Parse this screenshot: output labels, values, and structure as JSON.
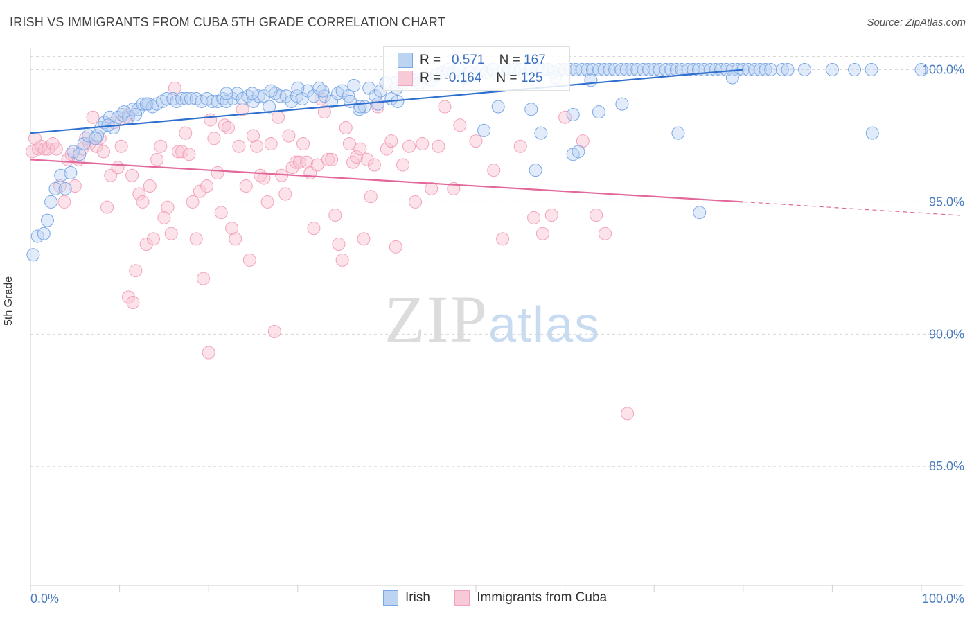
{
  "title": "IRISH VS IMMIGRANTS FROM CUBA 5TH GRADE CORRELATION CHART",
  "source": "Source: ZipAtlas.com",
  "watermark": {
    "zip": "ZIP",
    "atlas": "atlas"
  },
  "legend_top": {
    "series1": {
      "r_label": "R =",
      "r_value": "0.571",
      "n_label": "N =",
      "n_value": "167"
    },
    "series2": {
      "r_label": "R =",
      "r_value": "-0.164",
      "n_label": "N =",
      "n_value": "125"
    }
  },
  "colors": {
    "irish": "#7aa7e6",
    "irish_line": "#2f6fcd",
    "cuba": "#f2a2bb",
    "cuba_line": "#e2679a",
    "axis_text": "#4a7cc0"
  },
  "chart_data": {
    "type": "scatter",
    "title": "IRISH VS IMMIGRANTS FROM CUBA 5TH GRADE CORRELATION CHART",
    "xlabel": "",
    "ylabel": "5th Grade",
    "xlim": [
      0,
      100
    ],
    "ylim": [
      80.5,
      100.8
    ],
    "x_tick_labels": [
      "0.0%",
      "100.0%"
    ],
    "y_ticks": [
      85,
      90,
      95,
      100
    ],
    "y_tick_labels": [
      "85.0%",
      "90.0%",
      "95.0%",
      "100.0%"
    ],
    "grid": true,
    "legend_placement": "bottom",
    "series": [
      {
        "name": "Irish",
        "trend": {
          "x0": 0,
          "y0": 97.6,
          "x1": 80,
          "y1": 100.0
        },
        "points": [
          [
            0.3,
            93.0
          ],
          [
            0.8,
            93.7
          ],
          [
            1.5,
            93.8
          ],
          [
            1.9,
            94.3
          ],
          [
            2.3,
            95.0
          ],
          [
            2.8,
            95.5
          ],
          [
            3.4,
            96.0
          ],
          [
            3.9,
            95.5
          ],
          [
            4.5,
            96.1
          ],
          [
            4.8,
            96.9
          ],
          [
            5.5,
            96.8
          ],
          [
            6.0,
            97.2
          ],
          [
            6.5,
            97.5
          ],
          [
            7.5,
            97.5
          ],
          [
            7.9,
            97.8
          ],
          [
            8.3,
            98.0
          ],
          [
            8.9,
            98.2
          ],
          [
            9.3,
            97.8
          ],
          [
            9.8,
            98.2
          ],
          [
            10.3,
            98.3
          ],
          [
            11.0,
            98.2
          ],
          [
            11.5,
            98.5
          ],
          [
            12.1,
            98.5
          ],
          [
            12.6,
            98.7
          ],
          [
            13.2,
            98.7
          ],
          [
            13.7,
            98.6
          ],
          [
            14.2,
            98.7
          ],
          [
            14.8,
            98.8
          ],
          [
            15.3,
            98.9
          ],
          [
            16.0,
            98.9
          ],
          [
            16.4,
            98.8
          ],
          [
            17.0,
            98.9
          ],
          [
            17.5,
            98.9
          ],
          [
            18.0,
            98.9
          ],
          [
            18.6,
            98.9
          ],
          [
            19.2,
            98.8
          ],
          [
            19.8,
            98.9
          ],
          [
            20.4,
            98.8
          ],
          [
            21.0,
            98.8
          ],
          [
            21.6,
            98.9
          ],
          [
            22.0,
            98.8
          ],
          [
            22.7,
            98.9
          ],
          [
            23.2,
            99.1
          ],
          [
            23.8,
            98.9
          ],
          [
            24.4,
            99.0
          ],
          [
            25.0,
            98.8
          ],
          [
            25.6,
            99.0
          ],
          [
            26.2,
            99.0
          ],
          [
            26.8,
            98.6
          ],
          [
            27.5,
            99.1
          ],
          [
            28.0,
            99.0
          ],
          [
            28.7,
            99.0
          ],
          [
            29.3,
            98.8
          ],
          [
            29.9,
            99.0
          ],
          [
            30.5,
            98.9
          ],
          [
            31.1,
            99.2
          ],
          [
            31.8,
            99.0
          ],
          [
            32.4,
            99.3
          ],
          [
            33.0,
            99.0
          ],
          [
            33.8,
            98.8
          ],
          [
            34.5,
            99.1
          ],
          [
            35.0,
            99.2
          ],
          [
            35.7,
            99.0
          ],
          [
            36.3,
            99.4
          ],
          [
            36.9,
            98.5
          ],
          [
            37.5,
            98.6
          ],
          [
            38.0,
            99.3
          ],
          [
            38.7,
            99.0
          ],
          [
            39.3,
            99.2
          ],
          [
            39.9,
            99.5
          ],
          [
            40.5,
            98.9
          ],
          [
            41.1,
            99.3
          ],
          [
            41.8,
            99.5
          ],
          [
            42.4,
            99.7
          ],
          [
            43.0,
            99.6
          ],
          [
            43.7,
            99.5
          ],
          [
            44.3,
            99.7
          ],
          [
            45.0,
            99.6
          ],
          [
            45.6,
            99.8
          ],
          [
            46.2,
            99.9
          ],
          [
            46.9,
            100.0
          ],
          [
            47.5,
            99.9
          ],
          [
            48.1,
            100.0
          ],
          [
            48.7,
            99.7
          ],
          [
            49.3,
            99.9
          ],
          [
            50.0,
            99.8
          ],
          [
            50.6,
            100.0
          ],
          [
            51.2,
            99.9
          ],
          [
            51.9,
            100.0
          ],
          [
            52.5,
            99.8
          ],
          [
            53.1,
            100.0
          ],
          [
            53.7,
            100.0
          ],
          [
            54.3,
            100.0
          ],
          [
            55.0,
            100.0
          ],
          [
            55.6,
            99.8
          ],
          [
            56.2,
            100.0
          ],
          [
            56.9,
            100.0
          ],
          [
            57.5,
            100.0
          ],
          [
            58.1,
            100.0
          ],
          [
            58.7,
            99.9
          ],
          [
            59.4,
            100.0
          ],
          [
            60.0,
            100.0
          ],
          [
            60.6,
            100.0
          ],
          [
            61.2,
            100.0
          ],
          [
            61.9,
            100.0
          ],
          [
            62.5,
            100.0
          ],
          [
            63.1,
            100.0
          ],
          [
            63.8,
            100.0
          ],
          [
            64.4,
            100.0
          ],
          [
            65.0,
            100.0
          ],
          [
            65.6,
            100.0
          ],
          [
            66.3,
            100.0
          ],
          [
            66.9,
            100.0
          ],
          [
            67.5,
            100.0
          ],
          [
            68.1,
            100.0
          ],
          [
            68.8,
            100.0
          ],
          [
            69.4,
            100.0
          ],
          [
            70.0,
            100.0
          ],
          [
            70.6,
            100.0
          ],
          [
            71.3,
            100.0
          ],
          [
            71.9,
            100.0
          ],
          [
            72.5,
            100.0
          ],
          [
            73.1,
            100.0
          ],
          [
            73.8,
            100.0
          ],
          [
            74.4,
            100.0
          ],
          [
            75.0,
            100.0
          ],
          [
            75.6,
            100.0
          ],
          [
            76.3,
            100.0
          ],
          [
            76.9,
            100.0
          ],
          [
            77.5,
            100.0
          ],
          [
            78.1,
            100.0
          ],
          [
            78.8,
            100.0
          ],
          [
            79.4,
            100.0
          ],
          [
            80.0,
            100.0
          ],
          [
            80.6,
            100.0
          ],
          [
            81.3,
            100.0
          ],
          [
            81.9,
            100.0
          ],
          [
            82.5,
            100.0
          ],
          [
            83.1,
            100.0
          ],
          [
            84.4,
            100.0
          ],
          [
            85.0,
            100.0
          ],
          [
            86.9,
            100.0
          ],
          [
            90.0,
            100.0
          ],
          [
            92.5,
            100.0
          ],
          [
            94.4,
            100.0
          ],
          [
            100.0,
            100.0
          ],
          [
            78.8,
            99.7
          ],
          [
            62.9,
            99.6
          ],
          [
            58.9,
            99.7
          ],
          [
            52.5,
            98.6
          ],
          [
            56.2,
            98.5
          ],
          [
            60.9,
            98.3
          ],
          [
            63.8,
            98.4
          ],
          [
            66.4,
            98.7
          ],
          [
            72.7,
            97.6
          ],
          [
            94.5,
            97.6
          ],
          [
            50.9,
            97.7
          ],
          [
            57.3,
            97.6
          ],
          [
            60.9,
            96.8
          ],
          [
            61.5,
            96.9
          ],
          [
            56.7,
            96.2
          ],
          [
            75.1,
            94.6
          ],
          [
            40.9,
            99.5
          ],
          [
            41.2,
            98.8
          ],
          [
            39.0,
            98.7
          ],
          [
            37.0,
            98.6
          ],
          [
            35.9,
            98.8
          ],
          [
            32.8,
            99.2
          ],
          [
            30.0,
            99.3
          ],
          [
            27.0,
            99.2
          ],
          [
            24.9,
            99.1
          ],
          [
            22.0,
            99.1
          ],
          [
            13.0,
            98.7
          ],
          [
            11.8,
            98.3
          ],
          [
            10.5,
            98.4
          ],
          [
            8.7,
            97.9
          ],
          [
            7.3,
            97.4
          ]
        ]
      },
      {
        "name": "Immigrants from Cuba",
        "trend": {
          "x0": 0,
          "y0": 96.6,
          "x1": 80,
          "y1": 95.0
        },
        "points": [
          [
            0.2,
            96.9
          ],
          [
            0.5,
            97.4
          ],
          [
            0.9,
            97.0
          ],
          [
            1.2,
            97.1
          ],
          [
            1.6,
            97.0
          ],
          [
            2.0,
            97.0
          ],
          [
            2.5,
            97.2
          ],
          [
            2.9,
            97.0
          ],
          [
            3.3,
            95.6
          ],
          [
            3.8,
            95.0
          ],
          [
            4.2,
            96.6
          ],
          [
            4.6,
            96.8
          ],
          [
            5.0,
            95.6
          ],
          [
            5.4,
            96.6
          ],
          [
            5.8,
            97.0
          ],
          [
            6.2,
            97.4
          ],
          [
            6.6,
            97.2
          ],
          [
            7.0,
            98.2
          ],
          [
            7.4,
            97.1
          ],
          [
            7.8,
            97.4
          ],
          [
            8.2,
            96.9
          ],
          [
            8.6,
            94.8
          ],
          [
            9.0,
            96.0
          ],
          [
            9.4,
            98.0
          ],
          [
            9.8,
            96.3
          ],
          [
            10.2,
            97.1
          ],
          [
            10.6,
            98.2
          ],
          [
            11.0,
            98.3
          ],
          [
            11.4,
            96.0
          ],
          [
            11.8,
            92.4
          ],
          [
            12.2,
            95.3
          ],
          [
            12.6,
            95.0
          ],
          [
            13.0,
            93.4
          ],
          [
            13.4,
            95.6
          ],
          [
            13.8,
            93.6
          ],
          [
            14.2,
            96.6
          ],
          [
            14.6,
            97.1
          ],
          [
            15.0,
            94.4
          ],
          [
            15.4,
            94.8
          ],
          [
            15.8,
            93.8
          ],
          [
            16.2,
            99.3
          ],
          [
            16.6,
            96.9
          ],
          [
            17.0,
            96.9
          ],
          [
            17.4,
            97.6
          ],
          [
            17.8,
            96.8
          ],
          [
            18.2,
            95.0
          ],
          [
            18.6,
            93.6
          ],
          [
            19.0,
            95.4
          ],
          [
            19.4,
            92.1
          ],
          [
            19.8,
            95.6
          ],
          [
            20.2,
            98.1
          ],
          [
            20.6,
            97.4
          ],
          [
            21.0,
            96.1
          ],
          [
            21.4,
            94.6
          ],
          [
            21.8,
            97.9
          ],
          [
            22.2,
            97.8
          ],
          [
            22.6,
            94.0
          ],
          [
            23.0,
            93.6
          ],
          [
            23.4,
            97.1
          ],
          [
            23.8,
            98.5
          ],
          [
            24.2,
            95.6
          ],
          [
            24.6,
            92.8
          ],
          [
            25.0,
            97.5
          ],
          [
            25.4,
            97.1
          ],
          [
            25.8,
            96.0
          ],
          [
            26.2,
            95.9
          ],
          [
            26.6,
            95.0
          ],
          [
            27.0,
            97.2
          ],
          [
            27.4,
            90.1
          ],
          [
            27.8,
            98.2
          ],
          [
            28.2,
            96.0
          ],
          [
            28.6,
            95.3
          ],
          [
            29.0,
            97.5
          ],
          [
            29.4,
            96.3
          ],
          [
            29.8,
            96.5
          ],
          [
            30.2,
            96.5
          ],
          [
            30.6,
            97.2
          ],
          [
            31.0,
            96.5
          ],
          [
            31.4,
            96.1
          ],
          [
            31.8,
            94.0
          ],
          [
            32.2,
            96.4
          ],
          [
            32.6,
            98.9
          ],
          [
            33.0,
            98.4
          ],
          [
            33.4,
            96.6
          ],
          [
            33.8,
            96.6
          ],
          [
            34.2,
            94.5
          ],
          [
            34.6,
            93.4
          ],
          [
            35.0,
            92.8
          ],
          [
            35.4,
            97.8
          ],
          [
            35.8,
            97.2
          ],
          [
            36.2,
            96.5
          ],
          [
            36.6,
            96.7
          ],
          [
            37.0,
            97.0
          ],
          [
            37.4,
            93.6
          ],
          [
            37.8,
            96.6
          ],
          [
            38.2,
            95.2
          ],
          [
            38.6,
            96.4
          ],
          [
            39.0,
            98.6
          ],
          [
            40.0,
            97.0
          ],
          [
            40.5,
            97.3
          ],
          [
            41.0,
            93.3
          ],
          [
            41.8,
            96.4
          ],
          [
            42.5,
            97.1
          ],
          [
            43.2,
            95.0
          ],
          [
            44.0,
            97.2
          ],
          [
            45.0,
            95.5
          ],
          [
            45.8,
            97.1
          ],
          [
            46.5,
            98.6
          ],
          [
            47.5,
            95.5
          ],
          [
            48.2,
            97.9
          ],
          [
            50.0,
            97.3
          ],
          [
            52.0,
            96.2
          ],
          [
            53.0,
            93.6
          ],
          [
            55.0,
            97.1
          ],
          [
            56.5,
            94.4
          ],
          [
            57.5,
            93.8
          ],
          [
            58.5,
            94.5
          ],
          [
            60.0,
            98.2
          ],
          [
            62.0,
            97.3
          ],
          [
            63.5,
            94.5
          ],
          [
            64.5,
            93.8
          ],
          [
            67.0,
            87.0
          ],
          [
            11.0,
            91.4
          ],
          [
            11.5,
            91.2
          ],
          [
            20.0,
            89.3
          ]
        ]
      }
    ]
  },
  "bottom_legend": [
    {
      "label": "Irish"
    },
    {
      "label": "Immigrants from Cuba"
    }
  ]
}
